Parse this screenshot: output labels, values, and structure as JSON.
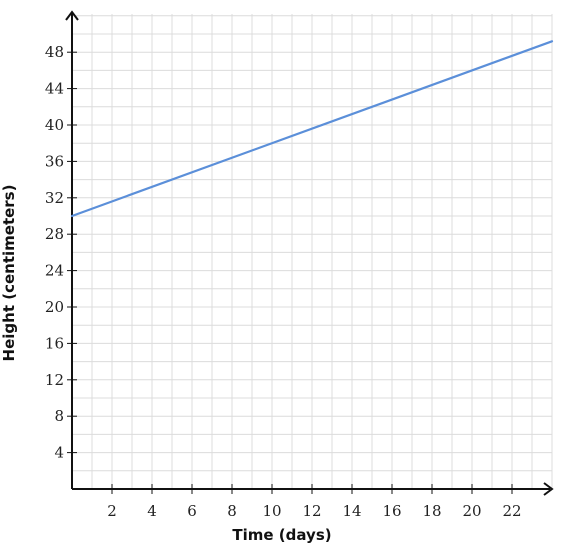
{
  "chart_data": {
    "type": "line",
    "xlabel": "Time (days)",
    "ylabel": "Height (centimeters)",
    "xlim": [
      0,
      24
    ],
    "ylim": [
      0,
      52
    ],
    "x_ticks": [
      2,
      4,
      6,
      8,
      10,
      12,
      14,
      16,
      18,
      20,
      22
    ],
    "y_ticks": [
      4,
      8,
      12,
      16,
      20,
      24,
      28,
      32,
      36,
      40,
      44,
      48
    ],
    "x_minor_step": 1,
    "y_minor_step": 2,
    "grid": true,
    "series": [
      {
        "x": [
          0,
          24
        ],
        "y": [
          30,
          49.2
        ],
        "color": "#5b8fd9"
      }
    ],
    "colors": {
      "grid": "#dcdcdc",
      "axis": "#111111",
      "line": "#5b8fd9"
    }
  }
}
